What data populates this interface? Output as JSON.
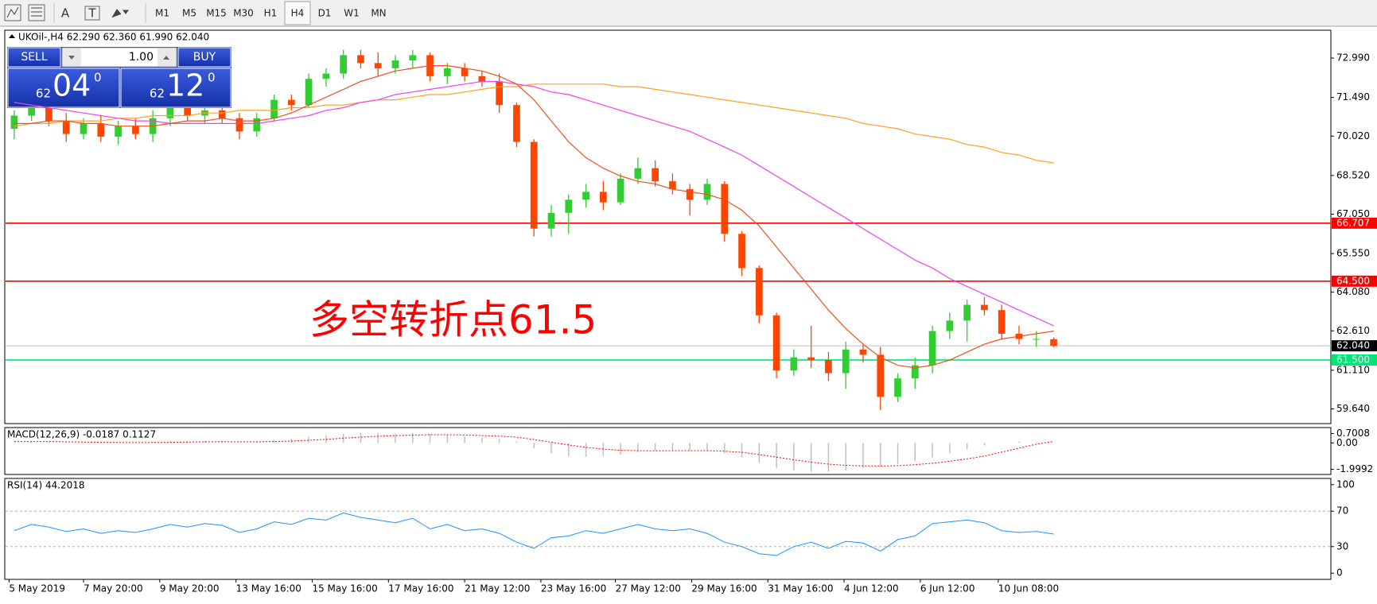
{
  "toolbar": {
    "tools": [
      "A",
      "T"
    ],
    "timeframes": [
      "M1",
      "M5",
      "M15",
      "M30",
      "H1",
      "H4",
      "D1",
      "W1",
      "MN"
    ],
    "active_index": 5
  },
  "trade_panel": {
    "sell_label": "SELL",
    "buy_label": "BUY",
    "lot": "1.00",
    "sell_price": {
      "big": "62",
      "main": "04",
      "sup": "0"
    },
    "buy_price": {
      "big": "62",
      "main": "12",
      "sup": "0"
    }
  },
  "chart_data": [
    {
      "type": "candlestick",
      "title": "UKOil-,H4  62.290 62.360 61.990 62.040",
      "up_color": "#32cd32",
      "down_color": "#ff4500",
      "xlim": [
        -0.5,
        76
      ],
      "ylim": [
        59.08,
        74.05
      ],
      "yticks": [
        {
          "value": 72.99,
          "label": "72.990"
        },
        {
          "value": 71.49,
          "label": "71.490"
        },
        {
          "value": 70.02,
          "label": "70.020"
        },
        {
          "value": 68.52,
          "label": "68.520"
        },
        {
          "value": 67.05,
          "label": "67.050"
        },
        {
          "value": 65.55,
          "label": "65.550"
        },
        {
          "value": 64.08,
          "label": "64.080"
        },
        {
          "value": 62.61,
          "label": "62.610"
        },
        {
          "value": 61.11,
          "label": "61.110"
        },
        {
          "value": 59.64,
          "label": "59.640"
        }
      ],
      "xticks": [
        {
          "value": -0.3,
          "label": "5 May 2019"
        },
        {
          "value": 4,
          "label": "7 May 20:00"
        },
        {
          "value": 8.4,
          "label": "9 May 20:00"
        },
        {
          "value": 12.8,
          "label": "13 May 16:00"
        },
        {
          "value": 17.2,
          "label": "15 May 16:00"
        },
        {
          "value": 21.6,
          "label": "17 May 16:00"
        },
        {
          "value": 26,
          "label": "21 May 12:00"
        },
        {
          "value": 30.4,
          "label": "23 May 16:00"
        },
        {
          "value": 34.7,
          "label": "27 May 12:00"
        },
        {
          "value": 39.1,
          "label": "29 May 16:00"
        },
        {
          "value": 43.5,
          "label": "31 May 16:00"
        },
        {
          "value": 47.9,
          "label": "4 Jun 12:00"
        },
        {
          "value": 52.3,
          "label": "6 Jun 12:00"
        },
        {
          "value": 56.8,
          "label": "10 Jun 08:00"
        }
      ],
      "open": [
        70.3,
        70.8,
        71.2,
        70.6,
        70.1,
        70.5,
        70.0,
        70.4,
        70.1,
        70.7,
        71.1,
        70.8,
        71.0,
        70.7,
        70.2,
        70.7,
        71.4,
        71.2,
        72.2,
        72.4,
        73.1,
        72.8,
        72.6,
        72.9,
        73.1,
        72.3,
        72.6,
        72.3,
        72.1,
        71.2,
        69.8,
        66.5,
        67.1,
        67.6,
        67.9,
        67.5,
        68.4,
        68.8,
        68.3,
        68.0,
        67.6,
        68.2,
        66.3,
        65.0,
        63.2,
        61.1,
        61.6,
        61.5,
        61.0,
        61.9,
        61.7,
        60.1,
        60.8,
        61.3,
        62.6,
        63.0,
        63.6,
        63.4,
        62.5,
        62.3,
        62.29
      ],
      "high": [
        71.0,
        71.4,
        71.3,
        70.9,
        70.7,
        70.8,
        70.6,
        70.7,
        71.0,
        71.3,
        71.4,
        71.2,
        71.6,
        70.9,
        70.9,
        71.6,
        71.6,
        72.4,
        72.6,
        73.3,
        73.3,
        73.2,
        73.1,
        73.3,
        73.2,
        72.8,
        72.8,
        72.5,
        72.4,
        71.3,
        69.9,
        67.4,
        67.8,
        68.2,
        68.3,
        68.6,
        69.2,
        69.1,
        68.6,
        68.2,
        68.4,
        68.3,
        66.4,
        65.1,
        63.3,
        61.9,
        62.8,
        61.8,
        62.2,
        62.1,
        62.0,
        61.0,
        61.6,
        62.8,
        63.3,
        63.8,
        63.9,
        63.6,
        62.8,
        62.6,
        62.36
      ],
      "low": [
        69.9,
        70.6,
        70.4,
        69.8,
        69.9,
        69.8,
        69.7,
        69.9,
        69.8,
        70.4,
        70.6,
        70.5,
        70.5,
        69.9,
        70.0,
        70.6,
        71.0,
        71.1,
        71.9,
        72.2,
        72.6,
        72.3,
        72.4,
        72.6,
        72.1,
        72.0,
        72.1,
        71.9,
        70.9,
        69.6,
        66.2,
        66.2,
        66.3,
        67.3,
        67.2,
        67.4,
        68.2,
        68.1,
        67.8,
        67.0,
        67.4,
        66.0,
        64.7,
        62.9,
        60.8,
        60.9,
        61.2,
        60.7,
        60.4,
        61.4,
        59.6,
        59.9,
        60.4,
        61.0,
        62.3,
        62.2,
        63.2,
        62.3,
        62.1,
        62.0,
        61.99
      ],
      "close": [
        70.8,
        71.2,
        70.6,
        70.1,
        70.5,
        70.0,
        70.4,
        70.1,
        70.7,
        71.1,
        70.8,
        71.0,
        70.7,
        70.2,
        70.7,
        71.4,
        71.2,
        72.2,
        72.4,
        73.1,
        72.8,
        72.6,
        72.9,
        73.1,
        72.3,
        72.6,
        72.3,
        72.1,
        71.2,
        69.8,
        66.5,
        67.1,
        67.6,
        67.9,
        67.5,
        68.4,
        68.8,
        68.3,
        68.0,
        67.6,
        68.2,
        66.3,
        65.0,
        63.2,
        61.1,
        61.6,
        61.5,
        61.0,
        61.9,
        61.7,
        60.1,
        60.8,
        61.3,
        62.6,
        63.0,
        63.6,
        63.4,
        62.5,
        62.3,
        62.3,
        62.04
      ],
      "series": [
        {
          "color": "#ffa020",
          "values": [
            70.4,
            70.5,
            70.5,
            70.6,
            70.6,
            70.6,
            70.7,
            70.7,
            70.8,
            70.8,
            70.8,
            70.9,
            70.9,
            71.0,
            71.0,
            71.0,
            71.1,
            71.1,
            71.2,
            71.2,
            71.3,
            71.4,
            71.4,
            71.5,
            71.6,
            71.6,
            71.7,
            71.8,
            71.9,
            71.9,
            72.0,
            72.0,
            72.0,
            72.0,
            72.0,
            71.9,
            71.9,
            71.8,
            71.7,
            71.6,
            71.5,
            71.4,
            71.3,
            71.2,
            71.1,
            71.0,
            70.9,
            70.8,
            70.7,
            70.5,
            70.4,
            70.3,
            70.1,
            70.0,
            69.9,
            69.7,
            69.6,
            69.4,
            69.3,
            69.1,
            69.0
          ]
        },
        {
          "color": "#ee44ee",
          "values": [
            71.3,
            71.2,
            71.1,
            71.0,
            70.9,
            70.8,
            70.7,
            70.6,
            70.6,
            70.5,
            70.5,
            70.5,
            70.5,
            70.5,
            70.5,
            70.6,
            70.7,
            70.8,
            71.0,
            71.1,
            71.3,
            71.4,
            71.6,
            71.7,
            71.8,
            71.9,
            72.0,
            72.1,
            72.1,
            72.0,
            71.9,
            71.7,
            71.6,
            71.4,
            71.2,
            71.0,
            70.8,
            70.6,
            70.4,
            70.2,
            69.9,
            69.6,
            69.3,
            68.9,
            68.5,
            68.1,
            67.7,
            67.3,
            66.9,
            66.5,
            66.1,
            65.7,
            65.3,
            65.0,
            64.6,
            64.3,
            64.0,
            63.7,
            63.4,
            63.1,
            62.8
          ]
        },
        {
          "color": "#f05020",
          "values": [
            70.5,
            70.5,
            70.6,
            70.6,
            70.5,
            70.5,
            70.4,
            70.4,
            70.4,
            70.5,
            70.6,
            70.6,
            70.7,
            70.6,
            70.6,
            70.7,
            70.9,
            71.2,
            71.5,
            71.8,
            72.1,
            72.3,
            72.5,
            72.6,
            72.7,
            72.7,
            72.6,
            72.5,
            72.3,
            72.0,
            71.4,
            70.6,
            69.8,
            69.2,
            68.8,
            68.5,
            68.3,
            68.2,
            68.0,
            67.9,
            67.8,
            67.6,
            67.2,
            66.6,
            65.8,
            65.0,
            64.2,
            63.4,
            62.7,
            62.1,
            61.6,
            61.3,
            61.2,
            61.3,
            61.5,
            61.8,
            62.1,
            62.3,
            62.4,
            62.5,
            62.6
          ]
        }
      ],
      "hlines": [
        {
          "value": 66.707,
          "label": "66.707",
          "color": "#ff0000"
        },
        {
          "value": 64.5,
          "label": "64.500",
          "color": "#ff0000"
        },
        {
          "value": 62.04,
          "label": "62.040",
          "color": "#c0c0c0",
          "label_bg": "#000000"
        },
        {
          "value": 61.5,
          "label": "61.500",
          "color": "#00e676"
        }
      ],
      "annotation": "多空转折点61.5",
      "annotation_color": "#ff0000"
    },
    {
      "type": "macd",
      "title": "MACD(12,26,9) -0.0187 0.1127",
      "ylim": [
        -2.39,
        1.16
      ],
      "yticks": [
        0.7008,
        {
          "value": 0,
          "label": "0.00"
        },
        -1.9992
      ],
      "series": [
        {
          "style": "histogram",
          "color": "#c0c0c0",
          "values": [
            0.05,
            0.1,
            0.1,
            0.05,
            0,
            -0.05,
            0,
            0,
            0.05,
            0.1,
            0.15,
            0.15,
            0.1,
            0.05,
            0.1,
            0.2,
            0.3,
            0.45,
            0.55,
            0.7,
            0.75,
            0.75,
            0.7,
            0.75,
            0.7,
            0.6,
            0.5,
            0.4,
            0.3,
            0.1,
            -0.4,
            -0.8,
            -1.0,
            -1.05,
            -1.0,
            -0.9,
            -0.7,
            -0.6,
            -0.55,
            -0.6,
            -0.6,
            -0.8,
            -1.1,
            -1.5,
            -1.9,
            -2.1,
            -2.2,
            -2.2,
            -2.1,
            -1.9,
            -1.8,
            -1.6,
            -1.4,
            -1.1,
            -0.8,
            -0.5,
            -0.2,
            0.0,
            0.1,
            0.05,
            -0.0187
          ]
        },
        {
          "style": "dotted",
          "color": "#ff0000",
          "values": [
            0.1,
            0.1,
            0.1,
            0.08,
            0.06,
            0.04,
            0.03,
            0.02,
            0.03,
            0.04,
            0.06,
            0.08,
            0.09,
            0.08,
            0.08,
            0.1,
            0.14,
            0.2,
            0.27,
            0.36,
            0.44,
            0.5,
            0.55,
            0.59,
            0.62,
            0.62,
            0.6,
            0.56,
            0.51,
            0.43,
            0.26,
            0.05,
            -0.16,
            -0.34,
            -0.47,
            -0.56,
            -0.59,
            -0.6,
            -0.59,
            -0.59,
            -0.59,
            -0.63,
            -0.72,
            -0.88,
            -1.08,
            -1.28,
            -1.46,
            -1.61,
            -1.7,
            -1.74,
            -1.75,
            -1.72,
            -1.65,
            -1.54,
            -1.39,
            -1.21,
            -1.0,
            -0.7,
            -0.4,
            -0.1,
            0.1127
          ]
        }
      ]
    },
    {
      "type": "line",
      "title": "RSI(14) 44.2018",
      "ylim": [
        -7,
        107
      ],
      "yticks": [
        100,
        70,
        30,
        0
      ],
      "levels": [
        70,
        30
      ],
      "series": [
        {
          "color": "#1e90ff",
          "values": [
            48,
            55,
            52,
            47,
            50,
            45,
            48,
            46,
            50,
            55,
            52,
            56,
            54,
            46,
            50,
            58,
            55,
            62,
            60,
            68,
            63,
            60,
            57,
            62,
            50,
            55,
            48,
            50,
            45,
            35,
            28,
            40,
            42,
            48,
            45,
            50,
            55,
            50,
            48,
            50,
            45,
            35,
            30,
            22,
            20,
            30,
            35,
            28,
            36,
            34,
            25,
            38,
            42,
            56,
            58,
            60,
            57,
            48,
            46,
            47,
            44.2018
          ]
        }
      ]
    }
  ]
}
